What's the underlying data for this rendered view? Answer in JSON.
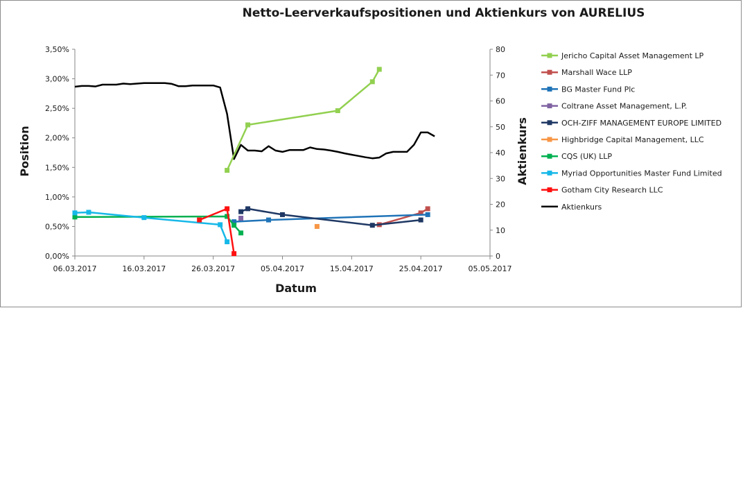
{
  "chart_data": {
    "type": "line",
    "title": "Netto-Leerverkaufspositionen und Aktienkurs von AURELIUS",
    "xlabel": "Datum",
    "ylabel": "Position",
    "y2label": "Aktienkurs",
    "x_ticks": [
      "06.03.2017",
      "16.03.2017",
      "26.03.2017",
      "05.04.2017",
      "15.04.2017",
      "25.04.2017",
      "05.05.2017"
    ],
    "x_range_days": [
      0,
      60
    ],
    "ylim": [
      0,
      3.5
    ],
    "y_ticks": [
      "0,00%",
      "0,50%",
      "1,00%",
      "1,50%",
      "2,00%",
      "2,50%",
      "3,00%",
      "3,50%"
    ],
    "y2lim": [
      0,
      80
    ],
    "y2_ticks": [
      "0",
      "10",
      "20",
      "30",
      "40",
      "50",
      "60",
      "70",
      "80"
    ],
    "legend_position": "right",
    "series": [
      {
        "name": "Jericho Capital Asset Management LP",
        "color": "#92d050",
        "axis": "left",
        "marker": true,
        "points": [
          [
            22,
            1.45
          ],
          [
            25,
            2.22
          ],
          [
            38,
            2.46
          ],
          [
            43,
            2.95
          ],
          [
            44,
            3.16
          ]
        ]
      },
      {
        "name": "Marshall Wace LLP",
        "color": "#c0504d",
        "axis": "left",
        "marker": true,
        "points": [
          [
            44,
            0.53
          ],
          [
            50,
            0.73
          ],
          [
            51,
            0.8
          ]
        ]
      },
      {
        "name": "BG Master Fund Plc",
        "color": "#1f73b7",
        "axis": "left",
        "marker": true,
        "points": [
          [
            23,
            0.58
          ],
          [
            28,
            0.61
          ],
          [
            51,
            0.7
          ]
        ]
      },
      {
        "name": "Coltrane Asset Management, L.P.",
        "color": "#7f63a2",
        "axis": "left",
        "marker": true,
        "points": [
          [
            24,
            0.64
          ]
        ]
      },
      {
        "name": "OCH-ZIFF MANAGEMENT EUROPE LIMITED",
        "color": "#1f3864",
        "axis": "left",
        "marker": true,
        "points": [
          [
            24,
            0.75
          ],
          [
            25,
            0.8
          ],
          [
            30,
            0.7
          ],
          [
            43,
            0.52
          ],
          [
            50,
            0.61
          ]
        ]
      },
      {
        "name": "Highbridge Capital Management, LLC",
        "color": "#f79646",
        "axis": "left",
        "marker": true,
        "points": [
          [
            35,
            0.5
          ]
        ]
      },
      {
        "name": "CQS (UK) LLP",
        "color": "#00b050",
        "axis": "left",
        "marker": true,
        "points": [
          [
            0,
            0.66
          ],
          [
            22,
            0.67
          ],
          [
            23,
            0.52
          ],
          [
            24,
            0.39
          ]
        ]
      },
      {
        "name": "Myriad Opportunities Master Fund Limited",
        "color": "#16b8e8",
        "axis": "left",
        "marker": true,
        "points": [
          [
            0,
            0.73
          ],
          [
            2,
            0.74
          ],
          [
            10,
            0.65
          ],
          [
            21,
            0.53
          ],
          [
            22,
            0.24
          ]
        ]
      },
      {
        "name": "Gotham City Research LLC",
        "color": "#ff1010",
        "axis": "left",
        "marker": true,
        "points": [
          [
            18,
            0.61
          ],
          [
            22,
            0.8
          ],
          [
            23,
            0.04
          ]
        ]
      },
      {
        "name": "Aktienkurs",
        "color": "#000000",
        "axis": "right",
        "marker": false,
        "points": [
          [
            0,
            65.5
          ],
          [
            1,
            65.8
          ],
          [
            2,
            65.8
          ],
          [
            3,
            65.6
          ],
          [
            4,
            66.3
          ],
          [
            5,
            66.3
          ],
          [
            6,
            66.3
          ],
          [
            7,
            66.7
          ],
          [
            8,
            66.5
          ],
          [
            9,
            66.7
          ],
          [
            10,
            66.9
          ],
          [
            11,
            66.9
          ],
          [
            12,
            66.9
          ],
          [
            13,
            66.9
          ],
          [
            14,
            66.6
          ],
          [
            15,
            65.7
          ],
          [
            16,
            65.7
          ],
          [
            17,
            66.0
          ],
          [
            18,
            66.0
          ],
          [
            19,
            66.0
          ],
          [
            20,
            66.0
          ],
          [
            21,
            65.2
          ],
          [
            22,
            55.0
          ],
          [
            23,
            37.5
          ],
          [
            24,
            43.0
          ],
          [
            25,
            40.8
          ],
          [
            26,
            40.8
          ],
          [
            27,
            40.5
          ],
          [
            28,
            42.5
          ],
          [
            29,
            40.8
          ],
          [
            30,
            40.3
          ],
          [
            31,
            41.0
          ],
          [
            32,
            41.0
          ],
          [
            33,
            41.0
          ],
          [
            34,
            42.0
          ],
          [
            35,
            41.4
          ],
          [
            36,
            41.2
          ],
          [
            37,
            40.8
          ],
          [
            38,
            40.3
          ],
          [
            39,
            39.7
          ],
          [
            40,
            39.2
          ],
          [
            41,
            38.7
          ],
          [
            42,
            38.2
          ],
          [
            43,
            37.8
          ],
          [
            44,
            38.1
          ],
          [
            45,
            39.7
          ],
          [
            46,
            40.3
          ],
          [
            47,
            40.3
          ],
          [
            48,
            40.3
          ],
          [
            49,
            43.0
          ],
          [
            50,
            47.8
          ],
          [
            51,
            47.8
          ],
          [
            52,
            46.3
          ]
        ]
      }
    ]
  }
}
